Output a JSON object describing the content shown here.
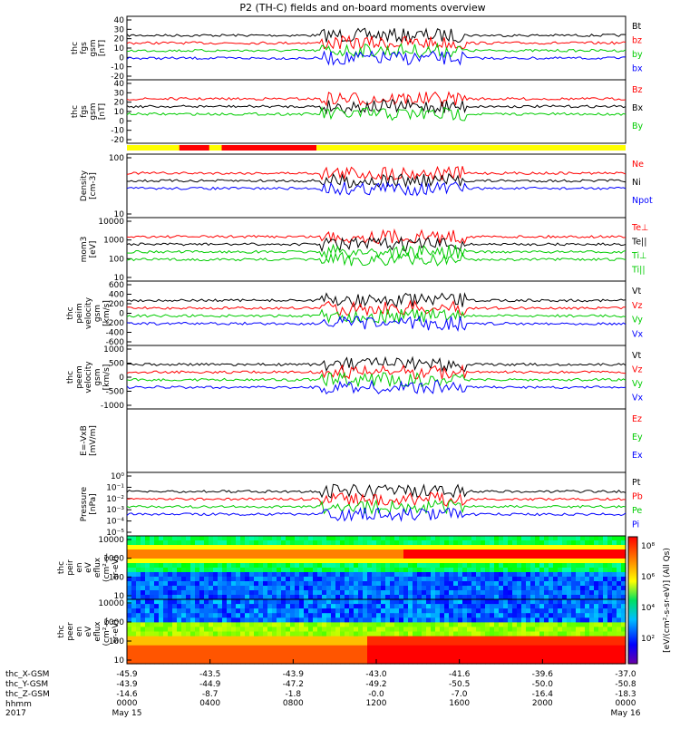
{
  "title": "P2 (TH-C) fields and on-board moments overview",
  "xaxis_ticks": [
    "0000",
    "0400",
    "0800",
    "1200",
    "1600",
    "2000",
    "0000"
  ],
  "date_start": "May 15",
  "date_end": "May 16",
  "year": "2017",
  "footer_rows": [
    {
      "label": "thc_X-GSM",
      "values": [
        "-45.9",
        "-43.5",
        "-43.9",
        "-43.0",
        "-41.6",
        "-39.6",
        "-37.0"
      ]
    },
    {
      "label": "thc_Y-GSM",
      "values": [
        "-43.9",
        "-44.9",
        "-47.2",
        "-49.2",
        "-50.5",
        "-50.0",
        "-50.8"
      ]
    },
    {
      "label": "thc_Z-GSM",
      "values": [
        "-14.6",
        "-8.7",
        "-1.8",
        "-0.0",
        "-7.0",
        "-16.4",
        "-18.3"
      ]
    },
    {
      "label": "hhmm",
      "values": []
    }
  ],
  "colorbar": {
    "ticks": [
      "10⁸",
      "10⁶",
      "10⁴",
      "10²"
    ],
    "label": "[eV/(cm²-s-sr-eV)] (All Qs)"
  },
  "chart_data": [
    {
      "type": "line",
      "ylabel": [
        "thc",
        "fgs",
        "gsm",
        "[nT]"
      ],
      "ylim": [
        -20,
        40
      ],
      "yticks": [
        "40",
        "30",
        "20",
        "10",
        "0",
        "-10",
        "-20"
      ],
      "series": [
        {
          "name": "Bt",
          "color": "#000000"
        },
        {
          "name": "bz",
          "color": "#ff0000"
        },
        {
          "name": "by",
          "color": "#00cc00"
        },
        {
          "name": "bx",
          "color": "#0000ff"
        }
      ]
    },
    {
      "type": "line",
      "ylabel": [
        "thc",
        "fgs",
        "gsm",
        "[nT]"
      ],
      "ylim": [
        -20,
        40
      ],
      "yticks": [
        "40",
        "30",
        "20",
        "10",
        "0",
        "-10",
        "-20"
      ],
      "series": [
        {
          "name": "Bz",
          "color": "#ff0000"
        },
        {
          "name": "Bx",
          "color": "#000000"
        },
        {
          "name": "By",
          "color": "#00cc00"
        }
      ]
    },
    {
      "type": "line",
      "ylabel": [
        "Density",
        "[cm-3]"
      ],
      "log": true,
      "yticks": [
        "100",
        "10"
      ],
      "series": [
        {
          "name": "Ne",
          "color": "#ff0000"
        },
        {
          "name": "Ni",
          "color": "#000000"
        },
        {
          "name": "Npot",
          "color": "#0000ff"
        }
      ]
    },
    {
      "type": "line",
      "ylabel": [
        "mom3",
        "[eV]"
      ],
      "log": true,
      "yticks": [
        "10000",
        "1000",
        "100",
        "10"
      ],
      "series": [
        {
          "name": "Te⊥",
          "color": "#ff0000"
        },
        {
          "name": "Te||",
          "color": "#000000"
        },
        {
          "name": "Ti⊥",
          "color": "#00cc00"
        },
        {
          "name": "Ti||",
          "color": "#00cc00"
        }
      ]
    },
    {
      "type": "line",
      "ylabel": [
        "thc",
        "peim",
        "velocity",
        "gsm",
        "[km/s]"
      ],
      "ylim": [
        -600,
        600
      ],
      "yticks": [
        "600",
        "400",
        "200",
        "0",
        "-200",
        "-400",
        "-600"
      ],
      "series": [
        {
          "name": "Vt",
          "color": "#000000"
        },
        {
          "name": "Vz",
          "color": "#ff0000"
        },
        {
          "name": "Vy",
          "color": "#00cc00"
        },
        {
          "name": "Vx",
          "color": "#0000ff"
        }
      ]
    },
    {
      "type": "line",
      "ylabel": [
        "thc",
        "peem",
        "velocity",
        "gsm",
        "[km/s]"
      ],
      "ylim": [
        -1000,
        1000
      ],
      "yticks": [
        "1000",
        "500",
        "0",
        "-500",
        "-1000"
      ],
      "series": [
        {
          "name": "Vt",
          "color": "#000000"
        },
        {
          "name": "Vz",
          "color": "#ff0000"
        },
        {
          "name": "Vy",
          "color": "#00cc00"
        },
        {
          "name": "Vx",
          "color": "#0000ff"
        }
      ]
    },
    {
      "type": "line",
      "ylabel": [
        "E=-VxB",
        "[mV/m]"
      ],
      "yticks": [],
      "series": [
        {
          "name": "Ez",
          "color": "#ff0000"
        },
        {
          "name": "Ey",
          "color": "#00cc00"
        },
        {
          "name": "Ex",
          "color": "#0000ff"
        }
      ]
    },
    {
      "type": "line",
      "ylabel": [
        "Pressure",
        "[nPa]"
      ],
      "log": true,
      "yticks": [
        "10⁰",
        "10⁻¹",
        "10⁻²",
        "10⁻³",
        "10⁻⁴",
        "10⁻⁵"
      ],
      "series": [
        {
          "name": "Pt",
          "color": "#000000"
        },
        {
          "name": "Pb",
          "color": "#ff0000"
        },
        {
          "name": "Pe",
          "color": "#00cc00"
        },
        {
          "name": "Pi",
          "color": "#0000ff"
        }
      ]
    },
    {
      "type": "heatmap",
      "ylabel": [
        "thc",
        "peir",
        "en",
        "eV",
        "eflux",
        "(cm²-s-",
        "sr-eV)"
      ],
      "yticks": [
        "10000",
        "1000",
        "100",
        "10"
      ]
    },
    {
      "type": "heatmap",
      "ylabel": [
        "thc",
        "peer",
        "en",
        "eV",
        "eflux",
        "(cm²-s-",
        "sr-eV)"
      ],
      "yticks": [
        "10000",
        "1000",
        "100",
        "10"
      ]
    }
  ]
}
